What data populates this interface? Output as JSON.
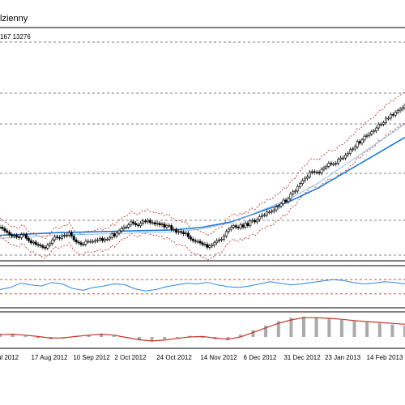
{
  "header": {
    "title": "lzienny",
    "ohlc": "167 13276"
  },
  "date_axis": [
    "ul 2012",
    "17 Aug 2012",
    "10 Sep 2012",
    "2 Oct 2012",
    "24 Oct 2012",
    "14 Nov 2012",
    "6 Dec 2012",
    "31 Dec 2012",
    "23 Jan 2013",
    "14 Feb 2013"
  ],
  "chart_data": [
    {
      "type": "candlestick",
      "title": "",
      "x_ticks": [
        "ul 2012",
        "17 Aug 2012",
        "10 Sep 2012",
        "2 Oct 2012",
        "24 Oct 2012",
        "14 Nov 2012",
        "6 Dec 2012",
        "31 Dec 2012",
        "23 Jan 2013",
        "14 Feb 2013"
      ],
      "series": [
        {
          "role": "price",
          "values": [
            0.57,
            0.55,
            0.52,
            0.5,
            0.47,
            0.45,
            0.46,
            0.44,
            0.43,
            0.47,
            0.47,
            0.42,
            0.39,
            0.36,
            0.37,
            0.34,
            0.33,
            0.32,
            0.3,
            0.29,
            0.33,
            0.35,
            0.4,
            0.44,
            0.43,
            0.42,
            0.45,
            0.46,
            0.46,
            0.5,
            0.45,
            0.4,
            0.37,
            0.36,
            0.34,
            0.34,
            0.38,
            0.38,
            0.38,
            0.38,
            0.39,
            0.4,
            0.42,
            0.39,
            0.41,
            0.41,
            0.43,
            0.48,
            0.45,
            0.49,
            0.52,
            0.55,
            0.57,
            0.57,
            0.6,
            0.64,
            0.62,
            0.6,
            0.59,
            0.62,
            0.65,
            0.64,
            0.66,
            0.63,
            0.63,
            0.61,
            0.62,
            0.6,
            0.61,
            0.57,
            0.59,
            0.59,
            0.54,
            0.54,
            0.5,
            0.51,
            0.5,
            0.48,
            0.49,
            0.44,
            0.41,
            0.39,
            0.38,
            0.38,
            0.36,
            0.34,
            0.34,
            0.3,
            0.32,
            0.33,
            0.36,
            0.39,
            0.4,
            0.41,
            0.45,
            0.51,
            0.54,
            0.57,
            0.59,
            0.57,
            0.56,
            0.6,
            0.57,
            0.62,
            0.59,
            0.65,
            0.66,
            0.64,
            0.67,
            0.71,
            0.73,
            0.73,
            0.77,
            0.77,
            0.78,
            0.8,
            0.84,
            0.85,
            0.88,
            0.93,
            0.91,
            0.95,
            1.01,
            1.04,
            1.05,
            1.11,
            1.15,
            1.19,
            1.22,
            1.24,
            1.3,
            1.31,
            1.3,
            1.3,
            1.29,
            1.34,
            1.36,
            1.38,
            1.42,
            1.41,
            1.41,
            1.42,
            1.47,
            1.49,
            1.49,
            1.53,
            1.55,
            1.6,
            1.61,
            1.64,
            1.71,
            1.69,
            1.73,
            1.78,
            1.79,
            1.81,
            1.84,
            1.85,
            1.89,
            1.94,
            1.94,
            1.96,
            2.02,
            2.02,
            2.07,
            2.06,
            2.1,
            2.12,
            2.14,
            2.16,
            2.19
          ]
        },
        {
          "role": "bollinger",
          "values": [
            0.2,
            0.25,
            0.3,
            0.35,
            0.4,
            0.5,
            0.65,
            0.85,
            1.05,
            1.3,
            1.6,
            1.85,
            2.05,
            2.2,
            2.3
          ]
        },
        {
          "role": "moving_average",
          "values": [
            0.4,
            0.42,
            0.44,
            0.45,
            0.46,
            0.47,
            0.48,
            0.52,
            0.6,
            0.75,
            0.9,
            1.1,
            1.35,
            1.6,
            1.85
          ]
        }
      ]
    },
    {
      "type": "line",
      "role": "oscillator",
      "levels": [
        70,
        30
      ],
      "values": [
        42,
        48,
        60,
        55,
        52,
        62,
        58,
        45,
        40,
        48,
        52,
        58,
        56,
        44,
        38,
        42,
        50,
        55,
        60,
        58,
        62,
        55,
        50,
        48,
        52,
        58,
        64,
        60,
        55,
        58,
        62,
        66,
        70,
        68,
        62,
        58,
        60,
        64,
        62,
        58
      ]
    },
    {
      "type": "bar",
      "role": "macd",
      "histogram": [
        0.15,
        0.1,
        0.05,
        -0.05,
        -0.1,
        -0.05,
        0.05,
        0.1,
        0.15,
        0.05,
        -0.05,
        -0.15,
        -0.2,
        -0.1,
        0.0,
        0.05,
        0.0,
        -0.1,
        -0.15,
        0.1,
        0.3,
        0.5,
        0.7,
        0.85,
        0.9,
        0.85,
        0.8,
        0.75,
        0.7,
        0.65,
        0.6,
        0.55,
        0.5
      ],
      "signal": [
        0.1,
        0.12,
        0.08,
        0.02,
        -0.05,
        -0.04,
        0.02,
        0.08,
        0.12,
        0.08,
        -0.02,
        -0.12,
        -0.18,
        -0.14,
        -0.06,
        0.0,
        0.02,
        -0.05,
        -0.1,
        0.0,
        0.2,
        0.4,
        0.6,
        0.75,
        0.85,
        0.85,
        0.82,
        0.78,
        0.72,
        0.68,
        0.64,
        0.6,
        0.56
      ]
    }
  ]
}
